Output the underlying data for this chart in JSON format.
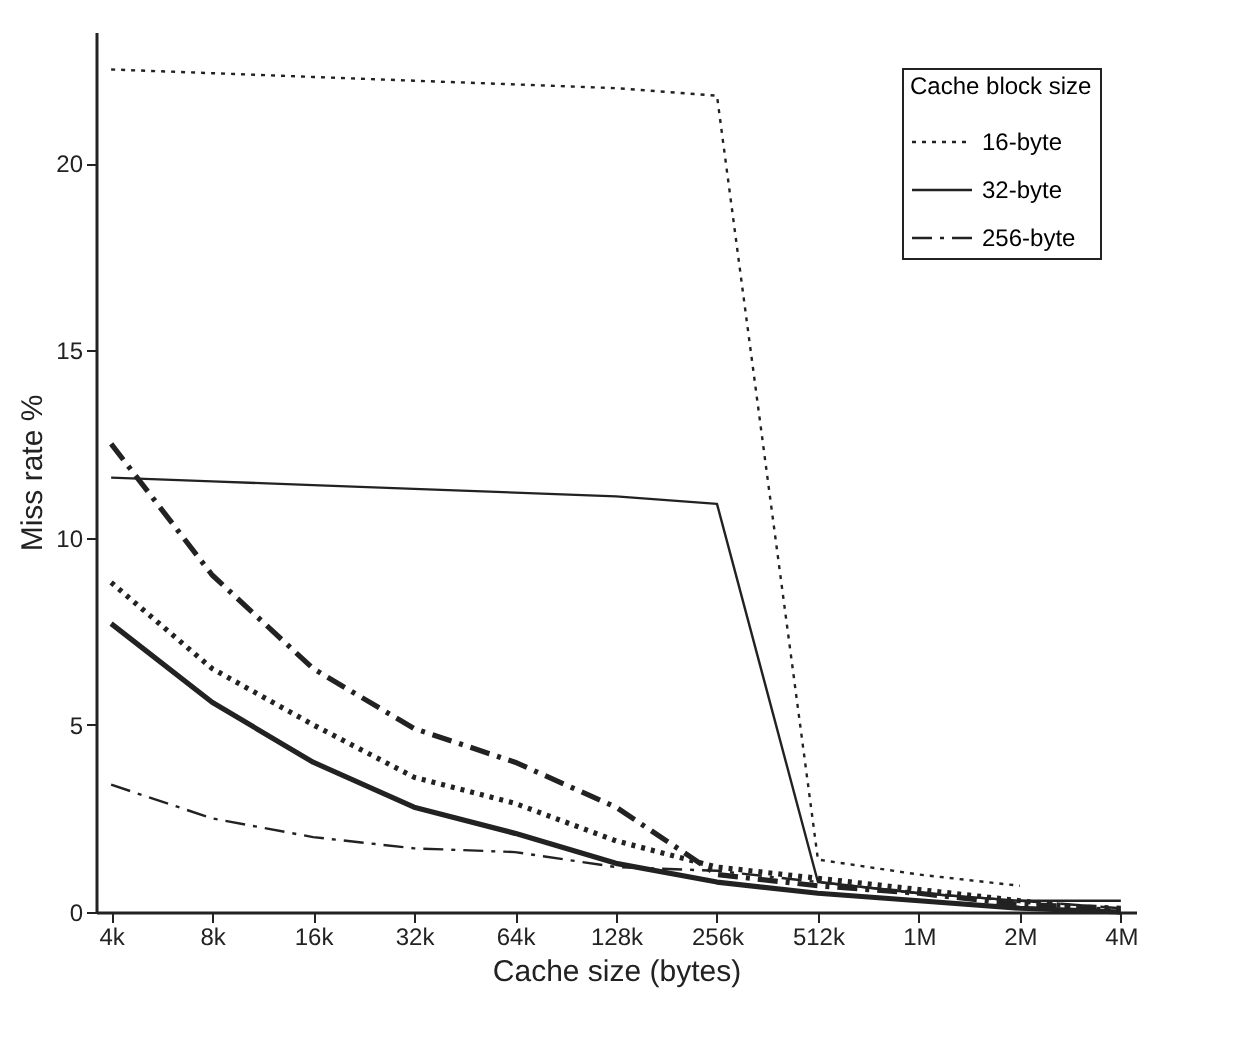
{
  "chart_data": {
    "type": "line",
    "xlabel": "Cache size (bytes)",
    "ylabel": "Miss rate %",
    "legend_title": "Cache block size",
    "legend": "top right",
    "marker": "none",
    "categories": [
      "4k",
      "8k",
      "16k",
      "32k",
      "64k",
      "128k",
      "256k",
      "512k",
      "1M",
      "2M",
      "4M"
    ],
    "ylim": [
      0,
      23.5
    ],
    "yticks": [
      0,
      5,
      10,
      15,
      20
    ],
    "series": [
      {
        "name": "16-byte",
        "color": "#222222",
        "line_style": "dotted",
        "values": [
          22.5,
          22.4,
          22.3,
          22.2,
          22.1,
          22.0,
          21.8,
          1.4,
          1.0,
          0.7,
          null
        ]
      },
      {
        "name": "32-byte",
        "color": "#222222",
        "line_style": "solid",
        "values": [
          11.6,
          11.5,
          11.4,
          11.3,
          11.2,
          11.1,
          10.9,
          0.8,
          0.5,
          0.3,
          0.3
        ]
      },
      {
        "name": "256-byte",
        "color": "#222222",
        "line_style": "dashed",
        "values": [
          3.4,
          2.5,
          2.0,
          1.7,
          1.6,
          1.2,
          1.1,
          0.8,
          0.5,
          0.3,
          0.1
        ]
      },
      {
        "color": "#222222",
        "line_style": "dashed",
        "values": [
          12.5,
          9.0,
          6.5,
          4.9,
          4.0,
          2.8,
          1.0,
          0.7,
          0.5,
          0.2,
          0.1
        ]
      },
      {
        "color": "#222222",
        "line_style": "dotted",
        "values": [
          8.8,
          6.5,
          5.0,
          3.6,
          2.9,
          1.9,
          1.2,
          0.9,
          0.6,
          0.3,
          0.0
        ]
      },
      {
        "color": "#222222",
        "line_style": "solid",
        "values": [
          7.7,
          5.6,
          4.0,
          2.8,
          2.1,
          1.3,
          0.8,
          0.5,
          0.3,
          0.1,
          0.0
        ]
      }
    ]
  }
}
